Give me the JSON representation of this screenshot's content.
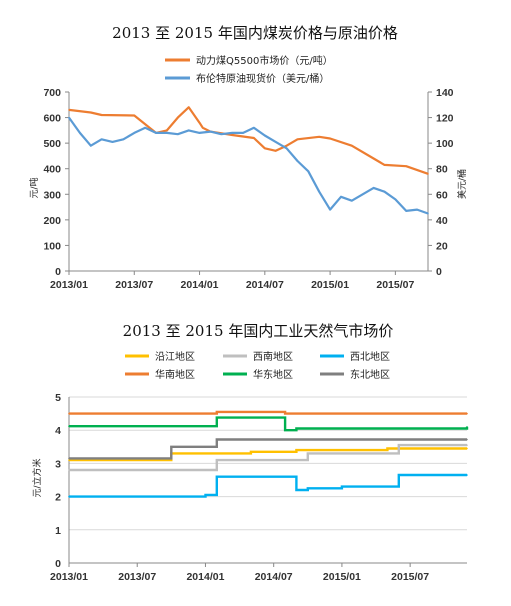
{
  "chart_data": [
    {
      "type": "line",
      "title": "2013 至 2015 年国内煤炭价格与原油价格",
      "ylabel": "元/吨",
      "y2label": "美元/桶",
      "ylim": [
        0,
        700
      ],
      "y2lim": [
        0,
        140
      ],
      "yticks": [
        "0",
        "100",
        "200",
        "300",
        "400",
        "500",
        "600",
        "700"
      ],
      "y2ticks": [
        "0",
        "20",
        "40",
        "60",
        "80",
        "100",
        "120",
        "140"
      ],
      "xticks": [
        "2013/01",
        "2013/07",
        "2014/01",
        "2014/07",
        "2015/01",
        "2015/07"
      ],
      "x_start": "2013-01",
      "x_end": "2015-10",
      "grid": false,
      "legend": "top",
      "series": [
        {
          "name": "动力煤Q5500市场价（元/吨）",
          "axis": "left",
          "color": "#ED7D31",
          "x": [
            "2013-01",
            "2013-03",
            "2013-04",
            "2013-07",
            "2013-09",
            "2013-10",
            "2013-11",
            "2013-12",
            "2014-01",
            "2014-01-10",
            "2014-02",
            "2014-04",
            "2014-06",
            "2014-07",
            "2014-08",
            "2014-09",
            "2014-10",
            "2014-12",
            "2015-01",
            "2015-03",
            "2015-05",
            "2015-06",
            "2015-08",
            "2015-10"
          ],
          "values": [
            630,
            620,
            610,
            608,
            540,
            550,
            600,
            640,
            580,
            560,
            545,
            532,
            520,
            480,
            470,
            490,
            515,
            525,
            518,
            490,
            440,
            415,
            410,
            380
          ]
        },
        {
          "name": "布伦特原油现货价（美元/桶）",
          "axis": "right",
          "color": "#5B9BD5",
          "x": [
            "2013-01",
            "2013-02",
            "2013-03",
            "2013-04",
            "2013-05",
            "2013-06",
            "2013-07",
            "2013-08",
            "2013-09",
            "2013-10",
            "2013-11",
            "2013-12",
            "2014-01",
            "2014-02",
            "2014-03",
            "2014-04",
            "2014-05",
            "2014-06",
            "2014-07",
            "2014-08",
            "2014-09",
            "2014-10",
            "2014-11",
            "2014-12",
            "2015-01",
            "2015-02",
            "2015-03",
            "2015-04",
            "2015-05",
            "2015-06",
            "2015-07",
            "2015-08",
            "2015-09",
            "2015-10"
          ],
          "values": [
            120,
            108,
            98,
            103,
            101,
            103,
            108,
            112,
            108,
            108,
            107,
            110,
            108,
            109,
            107,
            108,
            108,
            112,
            106,
            101,
            96,
            86,
            78,
            62,
            48,
            58,
            55,
            60,
            65,
            62,
            56,
            47,
            48,
            45
          ]
        }
      ]
    },
    {
      "type": "line",
      "title": "2013 至 2015 年国内工业天然气市场价",
      "ylabel": "元/立方米",
      "ylim": [
        0,
        5
      ],
      "yticks": [
        "0",
        "1",
        "2",
        "3",
        "4",
        "5"
      ],
      "xticks": [
        "2013/01",
        "2013/07",
        "2014/01",
        "2014/07",
        "2015/01",
        "2015/07"
      ],
      "x_start": "2013-01",
      "x_end": "2015-12",
      "grid": true,
      "legend": "top",
      "series": [
        {
          "name": "沿江地区",
          "color": "#FFC000",
          "x": [
            "2013-01",
            "2013-09",
            "2013-10",
            "2014-01",
            "2014-02",
            "2014-05",
            "2014-09",
            "2014-11",
            "2015-05",
            "2015-12"
          ],
          "values": [
            3.1,
            3.1,
            3.3,
            3.3,
            3.3,
            3.35,
            3.4,
            3.4,
            3.45,
            3.45
          ]
        },
        {
          "name": "西南地区",
          "color": "#BFBFBF",
          "x": [
            "2013-01",
            "2014-01",
            "2014-02",
            "2014-09",
            "2014-10",
            "2015-05",
            "2015-06",
            "2015-12"
          ],
          "values": [
            2.8,
            2.8,
            3.1,
            3.1,
            3.3,
            3.3,
            3.55,
            3.55
          ]
        },
        {
          "name": "西北地区",
          "color": "#00B0F0",
          "x": [
            "2013-01",
            "2014-01",
            "2014-02",
            "2014-08",
            "2014-09",
            "2014-10",
            "2015-01",
            "2015-05",
            "2015-06",
            "2015-12"
          ],
          "values": [
            2.0,
            2.05,
            2.6,
            2.6,
            2.2,
            2.25,
            2.3,
            2.3,
            2.65,
            2.65
          ]
        },
        {
          "name": "华南地区",
          "color": "#ED7D31",
          "x": [
            "2013-01",
            "2014-01",
            "2014-02",
            "2014-07",
            "2014-08",
            "2015-12"
          ],
          "values": [
            4.5,
            4.5,
            4.55,
            4.55,
            4.5,
            4.5
          ]
        },
        {
          "name": "华东地区",
          "color": "#00B050",
          "x": [
            "2013-01",
            "2014-01",
            "2014-02",
            "2014-07",
            "2014-08",
            "2014-09",
            "2015-12"
          ],
          "values": [
            4.12,
            4.12,
            4.38,
            4.38,
            4.0,
            4.05,
            4.1
          ]
        },
        {
          "name": "东北地区",
          "color": "#7F7F7F",
          "x": [
            "2013-01",
            "2013-09",
            "2013-10",
            "2014-01",
            "2014-02",
            "2015-05",
            "2015-06",
            "2015-12"
          ],
          "values": [
            3.15,
            3.15,
            3.5,
            3.5,
            3.72,
            3.72,
            3.72,
            3.72
          ]
        }
      ]
    }
  ]
}
